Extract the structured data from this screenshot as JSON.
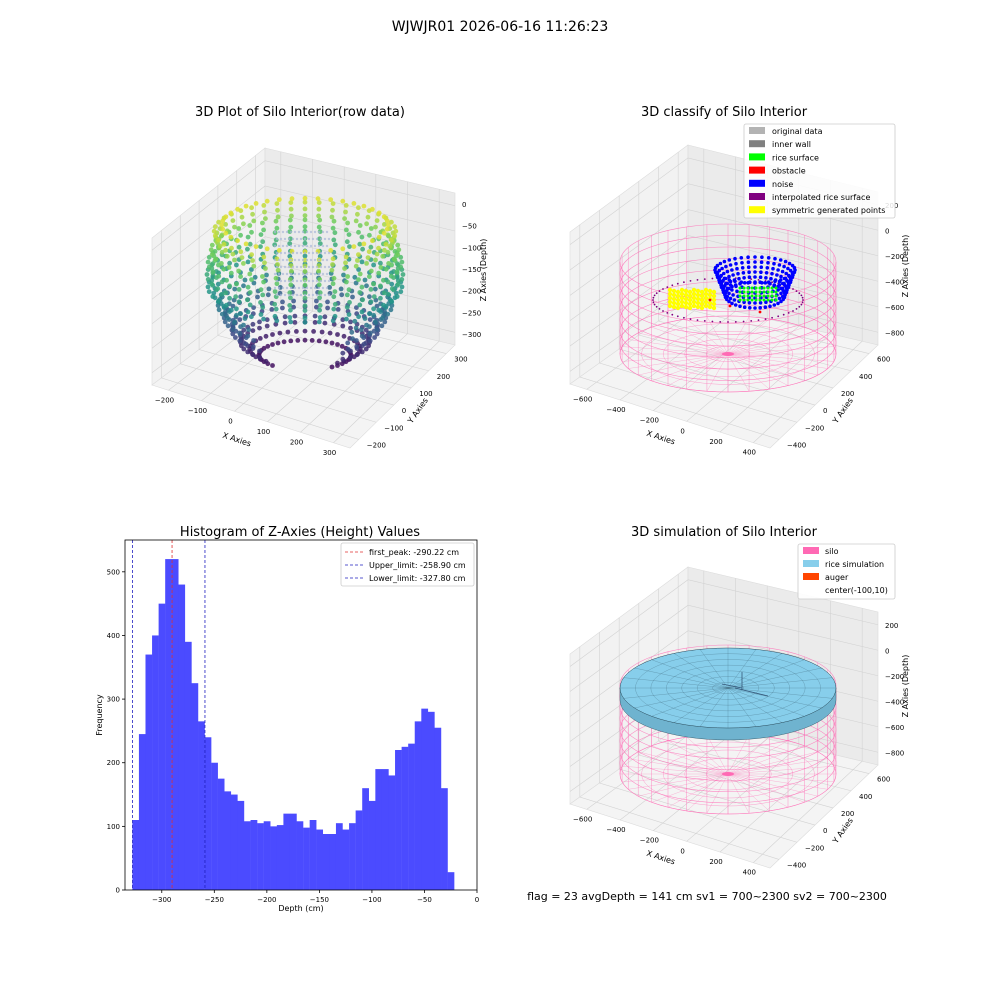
{
  "suptitle": "WJWJR01 2026-06-16 11:26:23",
  "status_line": "flag = 23  avgDepth = 141 cm  sv1 = 700~2300  sv2 = 700~2300",
  "colors": {
    "hist_bar": "#4b4bff",
    "first_peak": "#e03030",
    "limits": "#2020c0",
    "silo": "#ff69b4",
    "rice": "#87ceeb",
    "auger": "#ff4500",
    "original": "#b3b3b3",
    "inner_wall": "#808080",
    "rice_surface": "#00ff00",
    "obstacle": "#ff0000",
    "noise": "#0000ff",
    "interp": "#800080",
    "symmetric": "#ffff00"
  },
  "panels": {
    "raw": {
      "title": "3D Plot of Silo Interior(row data)",
      "xlabel": "X Axies",
      "ylabel": "Y Axies",
      "zlabel": "Z Axies (Depth)",
      "xticks": [
        "−200",
        "−100",
        "0",
        "100",
        "200",
        "300"
      ],
      "yticks": [
        "−200",
        "−100",
        "0",
        "100",
        "200",
        "300"
      ],
      "zticks": [
        "0",
        "−50",
        "−100",
        "−150",
        "−200",
        "−250",
        "−300"
      ]
    },
    "classify": {
      "title": "3D classify of Silo Interior",
      "xlabel": "X Axies",
      "ylabel": "Y Axies",
      "zlabel": "Z Axies (Depth)",
      "xticks": [
        "−600",
        "−400",
        "−200",
        "0",
        "200",
        "400"
      ],
      "yticks": [
        "−400",
        "−200",
        "0",
        "200",
        "400",
        "600"
      ],
      "zticks": [
        "200",
        "0",
        "−200",
        "−400",
        "−600",
        "−800"
      ],
      "legend": [
        {
          "label": "original data",
          "color": "#b3b3b3"
        },
        {
          "label": "inner wall",
          "color": "#808080"
        },
        {
          "label": "rice surface",
          "color": "#00ff00"
        },
        {
          "label": "obstacle",
          "color": "#ff0000"
        },
        {
          "label": "noise",
          "color": "#0000ff"
        },
        {
          "label": "interpolated rice surface",
          "color": "#800080"
        },
        {
          "label": "symmetric generated points",
          "color": "#ffff00"
        }
      ]
    },
    "simulation": {
      "title": "3D simulation of Silo Interior",
      "xlabel": "X Axies",
      "ylabel": "Y Axies",
      "zlabel": "Z Axies (Depth)",
      "xticks": [
        "−600",
        "−400",
        "−200",
        "0",
        "200",
        "400"
      ],
      "yticks": [
        "−400",
        "−200",
        "0",
        "200",
        "400",
        "600"
      ],
      "zticks": [
        "200",
        "0",
        "−200",
        "−400",
        "−600",
        "−800"
      ],
      "legend": [
        {
          "label": "silo",
          "color": "#ff69b4"
        },
        {
          "label": "rice simulation",
          "color": "#87ceeb"
        },
        {
          "label": "auger",
          "color": "#ff4500"
        },
        {
          "label": "center(-100,10)",
          "color": ""
        }
      ]
    }
  },
  "chart_data": {
    "type": "bar",
    "title": "Histogram of Z-Axies (Height) Values",
    "xlabel": "Depth (cm)",
    "ylabel": "Frequency",
    "xlim": [
      -335,
      0
    ],
    "ylim": [
      0,
      550
    ],
    "xticks": [
      -300,
      -250,
      -200,
      -150,
      -100,
      -50,
      0
    ],
    "xtick_labels": [
      "−300",
      "−250",
      "−200",
      "−150",
      "−100",
      "−50",
      "0"
    ],
    "yticks": [
      0,
      100,
      200,
      300,
      400,
      500
    ],
    "yticks_labels": [
      "0",
      "100",
      "200",
      "300",
      "400",
      "500"
    ],
    "bin_start": -328,
    "bin_width": 6.25,
    "values": [
      110,
      245,
      370,
      400,
      450,
      520,
      520,
      480,
      390,
      325,
      265,
      240,
      200,
      175,
      155,
      150,
      140,
      108,
      110,
      105,
      108,
      100,
      102,
      120,
      120,
      108,
      98,
      110,
      95,
      88,
      88,
      105,
      95,
      105,
      125,
      160,
      140,
      190,
      190,
      180,
      220,
      225,
      230,
      265,
      285,
      280,
      255,
      160,
      28
    ],
    "lines": [
      {
        "label": "first_peak: -290.22 cm",
        "x": -290.22,
        "color": "#e03030"
      },
      {
        "label": "Upper_limit: -258.90 cm",
        "x": -258.9,
        "color": "#2020c0"
      },
      {
        "label": "Lower_limit: -327.80 cm",
        "x": -327.8,
        "color": "#2020c0"
      }
    ],
    "legend_position": "top-right"
  }
}
